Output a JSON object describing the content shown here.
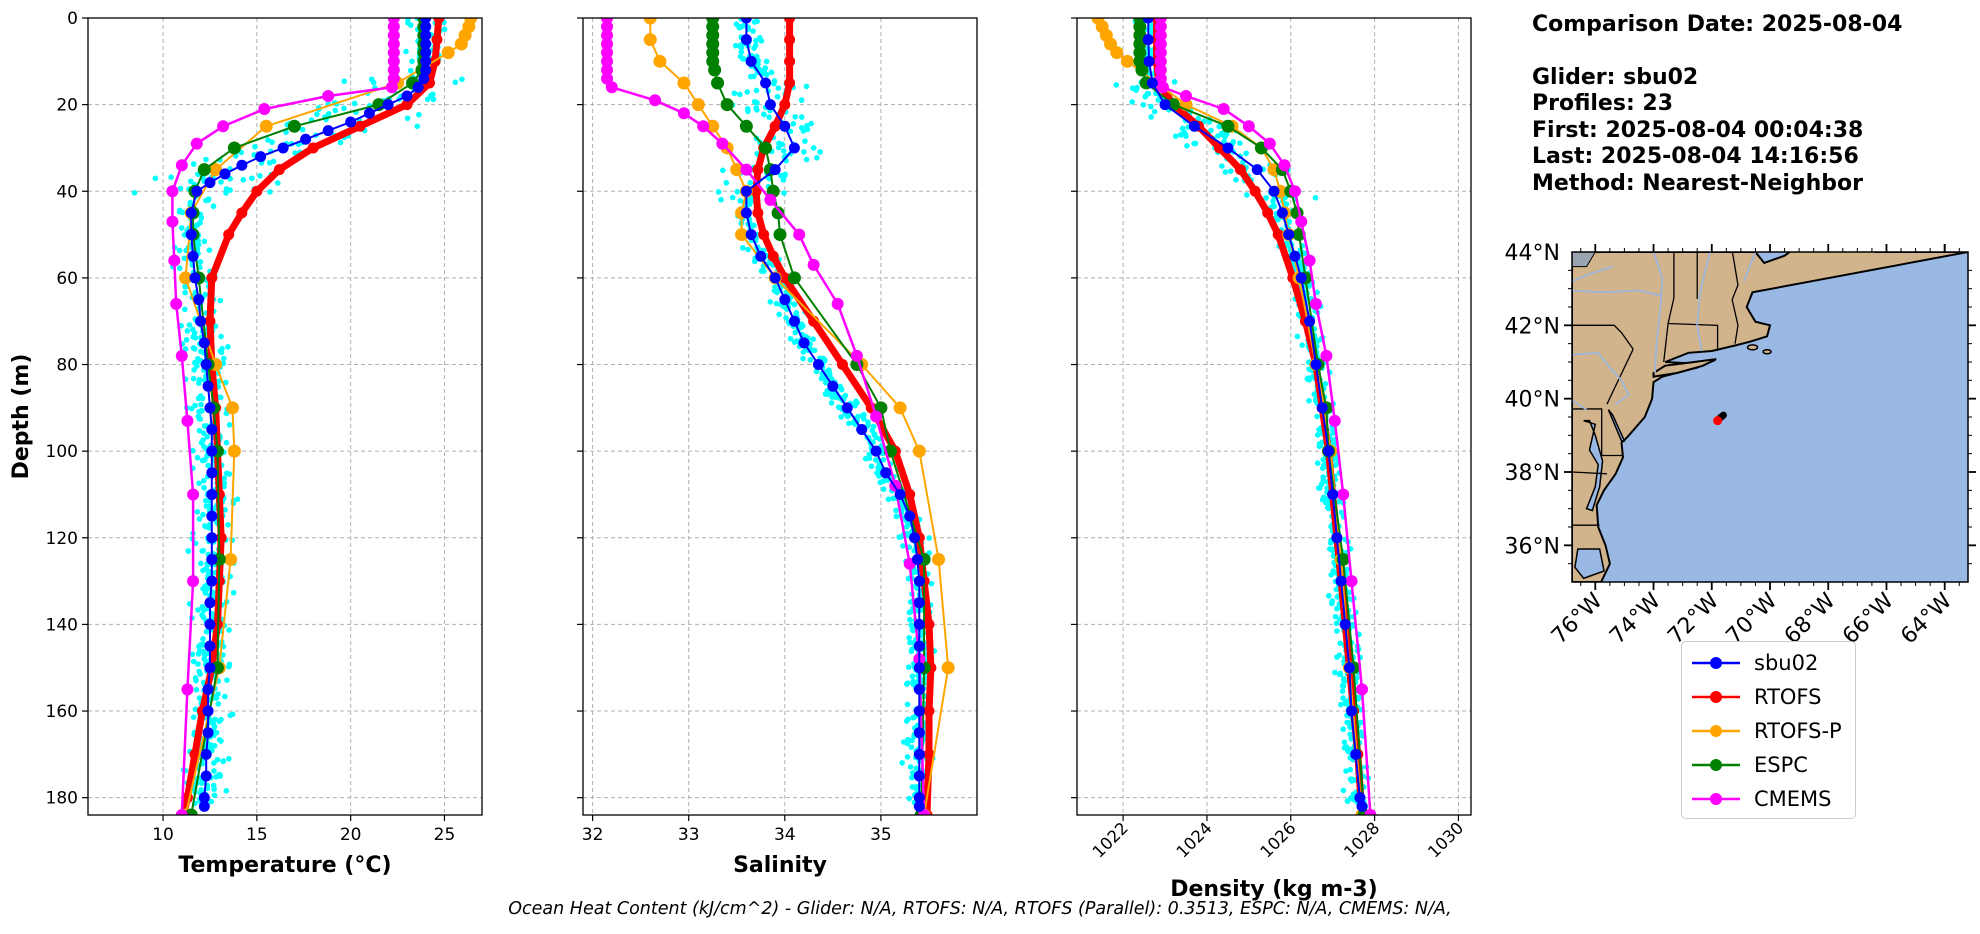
{
  "colors": {
    "glider": "#0000ff",
    "rtofs": "#ff0000",
    "rtofs_p": "#ffa500",
    "espc": "#008000",
    "cmems": "#ff00ff",
    "glider_raw": "#00ffff",
    "land": "#d2b48c",
    "ocean": "#9ab8e4"
  },
  "info": {
    "date_line": "Comparison Date: 2025-08-04",
    "glider_line": "Glider: sbu02",
    "profiles_line": "Profiles: 23",
    "first_line": "First: 2025-08-04 00:04:38",
    "last_line": "Last: 2025-08-04 14:16:56",
    "method_line": "Method: Nearest-Neighbor"
  },
  "footer": "Ocean Heat Content (kJ/cm^2) - Glider: N/A,  RTOFS: N/A,  RTOFS (Parallel): 0.3513,  ESPC: N/A,  CMEMS: N/A,",
  "legend": [
    {
      "key": "glider",
      "label": "sbu02"
    },
    {
      "key": "rtofs",
      "label": "RTOFS"
    },
    {
      "key": "rtofs_p",
      "label": "RTOFS-P"
    },
    {
      "key": "espc",
      "label": "ESPC"
    },
    {
      "key": "cmems",
      "label": "CMEMS"
    }
  ],
  "chart_data": [
    {
      "type": "line",
      "xlabel": "Temperature (°C)",
      "ylabel": "Depth (m)",
      "xlim": [
        6,
        27
      ],
      "ylim": [
        184,
        0
      ],
      "xticks": [
        10,
        15,
        20,
        25
      ],
      "yticks": [
        0,
        20,
        40,
        60,
        80,
        100,
        120,
        140,
        160,
        180
      ],
      "grid": true,
      "series": [
        {
          "name": "sbu02",
          "depth": [
            0,
            2,
            4,
            6,
            8,
            10,
            12,
            14,
            16,
            18,
            20,
            22,
            24,
            26,
            28,
            30,
            32,
            34,
            36,
            38,
            40,
            45,
            50,
            55,
            60,
            65,
            70,
            75,
            80,
            85,
            90,
            95,
            100,
            105,
            110,
            115,
            120,
            125,
            130,
            135,
            140,
            145,
            150,
            155,
            160,
            165,
            170,
            175,
            180,
            182
          ],
          "values": [
            24,
            24,
            24,
            24,
            24,
            24,
            24,
            23.9,
            23.6,
            23,
            22,
            21,
            20,
            18.8,
            17.6,
            16.4,
            15.2,
            14.2,
            13.3,
            12.5,
            11.8,
            11.5,
            11.5,
            11.6,
            11.7,
            11.9,
            12,
            12.2,
            12.3,
            12.4,
            12.5,
            12.6,
            12.6,
            12.6,
            12.6,
            12.6,
            12.6,
            12.6,
            12.6,
            12.5,
            12.5,
            12.5,
            12.5,
            12.4,
            12.4,
            12.4,
            12.3,
            12.3,
            12.2,
            12.2
          ]
        },
        {
          "name": "RTOFS",
          "depth": [
            0,
            5,
            10,
            15,
            20,
            25,
            30,
            35,
            40,
            45,
            50,
            60,
            70,
            80,
            90,
            100,
            110,
            120,
            130,
            140,
            150,
            160,
            170,
            180,
            184
          ],
          "values": [
            24.7,
            24.6,
            24.5,
            24.2,
            23,
            20.5,
            18,
            16.2,
            15,
            14.2,
            13.5,
            12.6,
            12.5,
            12.6,
            12.8,
            12.9,
            13,
            13.1,
            13,
            12.9,
            12.6,
            12.1,
            11.7,
            11.3,
            11.1
          ]
        },
        {
          "name": "RTOFS-P",
          "depth": [
            0,
            2,
            4,
            6,
            8,
            15,
            25,
            35,
            45,
            60,
            80,
            90,
            100,
            125,
            150,
            184
          ],
          "values": [
            26.4,
            26.3,
            26.1,
            25.9,
            25.2,
            22.5,
            15.5,
            12.8,
            11.5,
            11.2,
            12.8,
            13.7,
            13.8,
            13.6,
            13,
            11.2
          ]
        },
        {
          "name": "ESPC",
          "depth": [
            0,
            2,
            4,
            6,
            8,
            10,
            12,
            15,
            20,
            25,
            30,
            35,
            40,
            45,
            50,
            60,
            80,
            90,
            100,
            125,
            150,
            184
          ],
          "values": [
            23.9,
            23.9,
            23.9,
            23.9,
            23.9,
            23.9,
            23.8,
            23.3,
            21.5,
            17,
            13.8,
            12.2,
            11.7,
            11.6,
            11.6,
            11.9,
            12.4,
            12.7,
            12.9,
            13,
            12.9,
            11.5
          ]
        },
        {
          "name": "CMEMS",
          "depth": [
            0,
            2,
            4,
            6,
            8,
            10,
            12,
            14,
            16,
            18,
            21,
            25,
            29,
            34,
            40,
            47,
            56,
            66,
            78,
            93,
            110,
            130,
            155,
            184
          ],
          "values": [
            22.3,
            22.3,
            22.3,
            22.3,
            22.3,
            22.3,
            22.3,
            22.3,
            22.2,
            18.8,
            15.4,
            13.2,
            11.8,
            11,
            10.5,
            10.5,
            10.6,
            10.7,
            11,
            11.3,
            11.6,
            11.6,
            11.3,
            11
          ]
        }
      ]
    },
    {
      "type": "line",
      "xlabel": "Salinity",
      "ylabel": "",
      "xlim": [
        31.9,
        36
      ],
      "ylim": [
        184,
        0
      ],
      "xticks": [
        32,
        33,
        34,
        35
      ],
      "yticks": [
        0,
        20,
        40,
        60,
        80,
        100,
        120,
        140,
        160,
        180
      ],
      "grid": true,
      "series": [
        {
          "name": "sbu02",
          "depth": [
            0,
            5,
            10,
            15,
            20,
            25,
            30,
            35,
            40,
            45,
            50,
            55,
            60,
            65,
            70,
            75,
            80,
            85,
            90,
            95,
            100,
            105,
            110,
            115,
            120,
            125,
            130,
            135,
            140,
            145,
            150,
            155,
            160,
            165,
            170,
            175,
            180,
            182
          ],
          "values": [
            33.6,
            33.6,
            33.65,
            33.8,
            33.85,
            34,
            34.1,
            33.9,
            33.6,
            33.6,
            33.65,
            33.75,
            33.9,
            34,
            34.1,
            34.2,
            34.35,
            34.5,
            34.65,
            34.8,
            34.95,
            35.05,
            35.2,
            35.3,
            35.35,
            35.38,
            35.4,
            35.4,
            35.4,
            35.4,
            35.4,
            35.4,
            35.4,
            35.4,
            35.4,
            35.4,
            35.4,
            35.4
          ]
        },
        {
          "name": "RTOFS",
          "depth": [
            0,
            5,
            10,
            15,
            20,
            25,
            30,
            35,
            40,
            45,
            50,
            55,
            60,
            70,
            80,
            90,
            100,
            110,
            120,
            130,
            140,
            150,
            160,
            170,
            184
          ],
          "values": [
            34.05,
            34.05,
            34.05,
            34.05,
            34,
            33.9,
            33.78,
            33.72,
            33.7,
            33.72,
            33.78,
            33.88,
            34,
            34.3,
            34.6,
            34.9,
            35.15,
            35.3,
            35.4,
            35.45,
            35.5,
            35.52,
            35.5,
            35.5,
            35.48
          ]
        },
        {
          "name": "RTOFS-P",
          "depth": [
            0,
            5,
            10,
            15,
            20,
            25,
            30,
            35,
            40,
            45,
            50,
            60,
            80,
            90,
            100,
            125,
            150,
            184
          ],
          "values": [
            32.6,
            32.6,
            32.7,
            32.95,
            33.1,
            33.25,
            33.4,
            33.5,
            33.6,
            33.55,
            33.55,
            33.9,
            34.8,
            35.2,
            35.4,
            35.6,
            35.7,
            35.45
          ]
        },
        {
          "name": "ESPC",
          "depth": [
            0,
            2,
            4,
            6,
            8,
            10,
            12,
            15,
            20,
            25,
            30,
            35,
            40,
            45,
            50,
            60,
            80,
            90,
            100,
            125,
            150,
            184
          ],
          "values": [
            33.25,
            33.25,
            33.25,
            33.25,
            33.25,
            33.25,
            33.27,
            33.3,
            33.4,
            33.6,
            33.8,
            33.85,
            33.88,
            33.93,
            33.95,
            34.1,
            34.75,
            35,
            35.1,
            35.45,
            35.45,
            35.42
          ]
        },
        {
          "name": "CMEMS",
          "depth": [
            0,
            2,
            4,
            6,
            8,
            10,
            12,
            14,
            16,
            19,
            22,
            25,
            29,
            35,
            42,
            50,
            57,
            66,
            78,
            92,
            108,
            126,
            148,
            184
          ],
          "values": [
            32.15,
            32.15,
            32.15,
            32.15,
            32.15,
            32.15,
            32.15,
            32.15,
            32.2,
            32.65,
            32.95,
            33.15,
            33.35,
            33.6,
            33.85,
            34.15,
            34.3,
            34.55,
            34.75,
            34.95,
            35.15,
            35.3,
            35.4,
            35.45
          ]
        }
      ]
    },
    {
      "type": "line",
      "xlabel": "Density (kg m-3)",
      "ylabel": "",
      "xlim": [
        1020.9,
        1030.3
      ],
      "ylim": [
        184,
        0
      ],
      "xticks": [
        1022,
        1024,
        1026,
        1028,
        1030
      ],
      "yticks": [
        0,
        20,
        40,
        60,
        80,
        100,
        120,
        140,
        160,
        180
      ],
      "grid": true,
      "series": [
        {
          "name": "sbu02",
          "depth": [
            0,
            5,
            10,
            15,
            20,
            25,
            30,
            35,
            40,
            45,
            50,
            55,
            60,
            70,
            80,
            90,
            100,
            110,
            120,
            130,
            140,
            150,
            160,
            170,
            180,
            182
          ],
          "values": [
            1022.6,
            1022.6,
            1022.62,
            1022.7,
            1023,
            1023.7,
            1024.5,
            1025.2,
            1025.6,
            1025.8,
            1025.95,
            1026.1,
            1026.25,
            1026.45,
            1026.6,
            1026.75,
            1026.9,
            1027,
            1027.1,
            1027.2,
            1027.3,
            1027.4,
            1027.45,
            1027.55,
            1027.65,
            1027.7
          ]
        },
        {
          "name": "RTOFS",
          "depth": [
            0,
            5,
            10,
            15,
            20,
            25,
            30,
            35,
            40,
            45,
            50,
            60,
            70,
            80,
            90,
            100,
            110,
            120,
            130,
            140,
            150,
            160,
            170,
            184
          ],
          "values": [
            1022.8,
            1022.8,
            1022.8,
            1022.85,
            1023.2,
            1023.8,
            1024.3,
            1024.8,
            1025.15,
            1025.45,
            1025.7,
            1026.05,
            1026.35,
            1026.6,
            1026.75,
            1026.9,
            1027,
            1027.1,
            1027.2,
            1027.3,
            1027.4,
            1027.5,
            1027.6,
            1027.7
          ]
        },
        {
          "name": "RTOFS-P",
          "depth": [
            0,
            2,
            4,
            6,
            8,
            10,
            15,
            20,
            25,
            30,
            35,
            40,
            45,
            50,
            60,
            80,
            90,
            100,
            125,
            150,
            184
          ],
          "values": [
            1021.4,
            1021.5,
            1021.6,
            1021.7,
            1021.85,
            1022.1,
            1022.8,
            1023.5,
            1024.6,
            1025.3,
            1025.6,
            1025.75,
            1025.85,
            1025.95,
            1026.2,
            1026.6,
            1026.8,
            1026.95,
            1027.2,
            1027.4,
            1027.7
          ]
        },
        {
          "name": "ESPC",
          "depth": [
            0,
            2,
            4,
            6,
            8,
            10,
            12,
            15,
            20,
            25,
            30,
            35,
            40,
            45,
            50,
            60,
            80,
            90,
            100,
            125,
            150,
            184
          ],
          "values": [
            1022.4,
            1022.4,
            1022.4,
            1022.4,
            1022.4,
            1022.4,
            1022.45,
            1022.55,
            1023.2,
            1024.5,
            1025.3,
            1025.8,
            1026,
            1026.15,
            1026.2,
            1026.35,
            1026.65,
            1026.85,
            1026.9,
            1027.25,
            1027.5,
            1027.75
          ]
        },
        {
          "name": "CMEMS",
          "depth": [
            0,
            2,
            4,
            6,
            8,
            10,
            12,
            14,
            16,
            18,
            21,
            25,
            29,
            34,
            40,
            47,
            56,
            66,
            78,
            93,
            110,
            130,
            155,
            184
          ],
          "values": [
            1022.9,
            1022.9,
            1022.9,
            1022.9,
            1022.9,
            1022.9,
            1022.9,
            1022.9,
            1022.95,
            1023.5,
            1024.4,
            1025,
            1025.5,
            1025.85,
            1026.1,
            1026.25,
            1026.45,
            1026.6,
            1026.85,
            1027.05,
            1027.25,
            1027.45,
            1027.7,
            1027.9
          ]
        }
      ]
    }
  ],
  "map": {
    "lon_labels": [
      "76°W",
      "74°W",
      "72°W",
      "70°W",
      "68°W",
      "66°W",
      "64°W"
    ],
    "lon_values": [
      -76,
      -74,
      -72,
      -70,
      -68,
      -66,
      -64
    ],
    "lat_labels": [
      "44°N",
      "42°N",
      "40°N",
      "38°N",
      "36°N"
    ],
    "lat_values": [
      44,
      42,
      40,
      38,
      36
    ],
    "extent": {
      "lon_min": -76.8,
      "lon_max": -63.2,
      "lat_min": 35,
      "lat_max": 44
    },
    "track": [
      [
        -71.6,
        39.55
      ],
      [
        -71.75,
        39.45
      ],
      [
        -71.8,
        39.4
      ]
    ]
  }
}
